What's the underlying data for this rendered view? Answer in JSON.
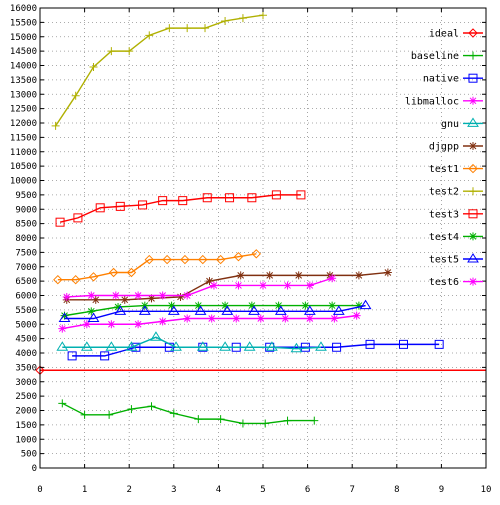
{
  "chart_data": {
    "type": "line",
    "title": "",
    "xlabel": "",
    "ylabel": "",
    "xlim": [
      0,
      10
    ],
    "ylim": [
      0,
      16000
    ],
    "x_ticks": [
      "0",
      "1",
      "2",
      "3",
      "4",
      "5",
      "6",
      "7",
      "8",
      "9",
      "10"
    ],
    "y_ticks": [
      "0",
      "500",
      "1000",
      "1500",
      "2000",
      "2500",
      "3000",
      "3500",
      "4000",
      "4500",
      "5000",
      "5500",
      "6000",
      "6500",
      "7000",
      "7500",
      "8000",
      "8500",
      "9000",
      "9500",
      "10000",
      "10500",
      "11000",
      "11500",
      "12000",
      "12500",
      "13000",
      "13500",
      "14000",
      "14500",
      "15000",
      "15500",
      "16000"
    ],
    "grid": true,
    "legend_position": "right",
    "series": [
      {
        "name": "ideal",
        "color": "#ff0000",
        "marker": "diamond",
        "style": "hline",
        "points": [
          [
            0,
            3400
          ],
          [
            10,
            3400
          ]
        ]
      },
      {
        "name": "baseline",
        "color": "#00b000",
        "marker": "plus",
        "points": [
          [
            0.5,
            2250
          ],
          [
            1.0,
            1850
          ],
          [
            1.55,
            1850
          ],
          [
            2.05,
            2050
          ],
          [
            2.5,
            2150
          ],
          [
            3.0,
            1900
          ],
          [
            3.55,
            1700
          ],
          [
            4.05,
            1700
          ],
          [
            4.55,
            1550
          ],
          [
            5.05,
            1550
          ],
          [
            5.55,
            1650
          ],
          [
            6.15,
            1650
          ]
        ]
      },
      {
        "name": "native",
        "color": "#0000ff",
        "marker": "square",
        "points": [
          [
            0.72,
            3900
          ],
          [
            1.45,
            3900
          ],
          [
            2.15,
            4200
          ],
          [
            2.9,
            4200
          ],
          [
            3.65,
            4200
          ],
          [
            4.4,
            4200
          ],
          [
            5.15,
            4200
          ],
          [
            5.95,
            4200
          ],
          [
            6.65,
            4200
          ],
          [
            7.4,
            4300
          ],
          [
            8.15,
            4300
          ],
          [
            8.95,
            4300
          ]
        ]
      },
      {
        "name": "libmalloc",
        "color": "#ff00ff",
        "marker": "star",
        "points": [
          [
            0.5,
            4850
          ],
          [
            1.05,
            5000
          ],
          [
            1.6,
            5000
          ],
          [
            2.2,
            5000
          ],
          [
            2.75,
            5100
          ],
          [
            3.3,
            5200
          ],
          [
            3.85,
            5200
          ],
          [
            4.4,
            5200
          ],
          [
            4.95,
            5200
          ],
          [
            5.5,
            5200
          ],
          [
            6.05,
            5200
          ],
          [
            6.6,
            5200
          ],
          [
            7.1,
            5300
          ]
        ]
      },
      {
        "name": "gnu",
        "color": "#00b0b0",
        "marker": "triangle",
        "points": [
          [
            0.5,
            4200
          ],
          [
            1.05,
            4200
          ],
          [
            1.6,
            4200
          ],
          [
            2.05,
            4200
          ],
          [
            2.6,
            4550
          ],
          [
            3.05,
            4200
          ],
          [
            3.65,
            4200
          ],
          [
            4.15,
            4200
          ],
          [
            4.7,
            4200
          ],
          [
            5.2,
            4200
          ],
          [
            5.75,
            4150
          ],
          [
            6.3,
            4200
          ]
        ]
      },
      {
        "name": "djgpp",
        "color": "#803010",
        "marker": "star",
        "points": [
          [
            0.6,
            5850
          ],
          [
            1.25,
            5850
          ],
          [
            1.9,
            5850
          ],
          [
            2.5,
            5900
          ],
          [
            3.15,
            5950
          ],
          [
            3.8,
            6500
          ],
          [
            4.5,
            6700
          ],
          [
            5.15,
            6700
          ],
          [
            5.8,
            6700
          ],
          [
            6.5,
            6700
          ],
          [
            7.15,
            6700
          ],
          [
            7.8,
            6800
          ]
        ]
      },
      {
        "name": "test1",
        "color": "#ff8000",
        "marker": "diamond",
        "points": [
          [
            0.4,
            6550
          ],
          [
            0.8,
            6550
          ],
          [
            1.2,
            6650
          ],
          [
            1.65,
            6800
          ],
          [
            2.05,
            6800
          ],
          [
            2.45,
            7250
          ],
          [
            2.85,
            7250
          ],
          [
            3.25,
            7250
          ],
          [
            3.65,
            7250
          ],
          [
            4.05,
            7250
          ],
          [
            4.45,
            7350
          ],
          [
            4.85,
            7450
          ]
        ]
      },
      {
        "name": "test2",
        "color": "#b0b000",
        "marker": "plus",
        "points": [
          [
            0.35,
            11900
          ],
          [
            0.8,
            12950
          ],
          [
            1.2,
            13950
          ],
          [
            1.6,
            14500
          ],
          [
            2.0,
            14500
          ],
          [
            2.45,
            15050
          ],
          [
            2.9,
            15300
          ],
          [
            3.3,
            15300
          ],
          [
            3.7,
            15300
          ],
          [
            4.15,
            15550
          ],
          [
            4.55,
            15650
          ],
          [
            5.0,
            15750
          ]
        ]
      },
      {
        "name": "test3",
        "color": "#ff0000",
        "marker": "square",
        "points": [
          [
            0.45,
            8550
          ],
          [
            0.85,
            8700
          ],
          [
            1.35,
            9050
          ],
          [
            1.8,
            9100
          ],
          [
            2.3,
            9150
          ],
          [
            2.75,
            9300
          ],
          [
            3.2,
            9300
          ],
          [
            3.75,
            9400
          ],
          [
            4.25,
            9400
          ],
          [
            4.75,
            9400
          ],
          [
            5.3,
            9500
          ],
          [
            5.85,
            9500
          ]
        ]
      },
      {
        "name": "test4",
        "color": "#00b000",
        "marker": "star",
        "points": [
          [
            0.55,
            5300
          ],
          [
            1.15,
            5450
          ],
          [
            1.75,
            5600
          ],
          [
            2.35,
            5650
          ],
          [
            2.95,
            5650
          ],
          [
            3.55,
            5650
          ],
          [
            4.15,
            5650
          ],
          [
            4.75,
            5650
          ],
          [
            5.35,
            5650
          ],
          [
            5.95,
            5650
          ],
          [
            6.55,
            5650
          ],
          [
            7.15,
            5650
          ]
        ]
      },
      {
        "name": "test5",
        "color": "#0000ff",
        "marker": "triangle",
        "points": [
          [
            0.55,
            5200
          ],
          [
            1.2,
            5200
          ],
          [
            1.8,
            5450
          ],
          [
            2.35,
            5450
          ],
          [
            3.0,
            5450
          ],
          [
            3.6,
            5450
          ],
          [
            4.2,
            5450
          ],
          [
            4.8,
            5450
          ],
          [
            5.4,
            5450
          ],
          [
            6.05,
            5450
          ],
          [
            6.7,
            5450
          ],
          [
            7.3,
            5650
          ]
        ]
      },
      {
        "name": "test6",
        "color": "#ff00ff",
        "marker": "star",
        "points": [
          [
            0.6,
            5950
          ],
          [
            1.15,
            6000
          ],
          [
            1.7,
            6000
          ],
          [
            2.2,
            6000
          ],
          [
            2.75,
            6000
          ],
          [
            3.3,
            6000
          ],
          [
            3.9,
            6350
          ],
          [
            4.45,
            6350
          ],
          [
            5.0,
            6350
          ],
          [
            5.55,
            6350
          ],
          [
            6.05,
            6350
          ],
          [
            6.55,
            6600
          ]
        ]
      }
    ]
  }
}
